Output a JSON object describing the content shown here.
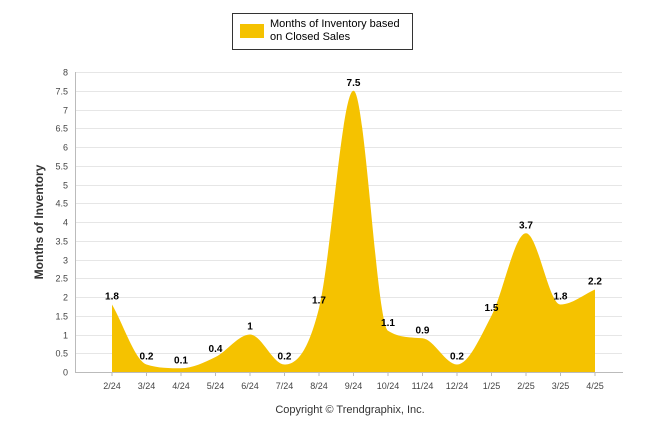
{
  "chart_data": {
    "type": "area",
    "categories": [
      "2/24",
      "3/24",
      "4/24",
      "5/24",
      "6/24",
      "7/24",
      "8/24",
      "9/24",
      "10/24",
      "11/24",
      "12/24",
      "1/25",
      "2/25",
      "3/25",
      "4/25"
    ],
    "series": [
      {
        "name": "Months of Inventory based on Closed Sales",
        "values": [
          1.8,
          0.2,
          0.1,
          0.4,
          1,
          0.2,
          1.7,
          7.5,
          1.1,
          0.9,
          0.2,
          1.5,
          3.7,
          1.8,
          2.2
        ],
        "labels": [
          "1.8",
          "0.2",
          "0.1",
          "0.4",
          "1",
          "0.2",
          "1.7",
          "7.5",
          "1.1",
          "0.9",
          "0.2",
          "1.5",
          "3.7",
          "1.8",
          "2.2"
        ],
        "color": "#F5C200"
      }
    ],
    "ylabel": "Months of Inventory",
    "ylim": [
      0,
      8
    ],
    "yticks": [
      "0",
      "0.5",
      "1",
      "1.5",
      "2",
      "2.5",
      "3",
      "3.5",
      "4",
      "4.5",
      "5",
      "5.5",
      "6",
      "6.5",
      "7",
      "7.5",
      "8"
    ],
    "grid": true,
    "legend_position": "top-center"
  },
  "legend": {
    "line1": "Months of Inventory based",
    "line2": "on Closed Sales"
  },
  "credit": "Copyright © Trendgraphix, Inc."
}
